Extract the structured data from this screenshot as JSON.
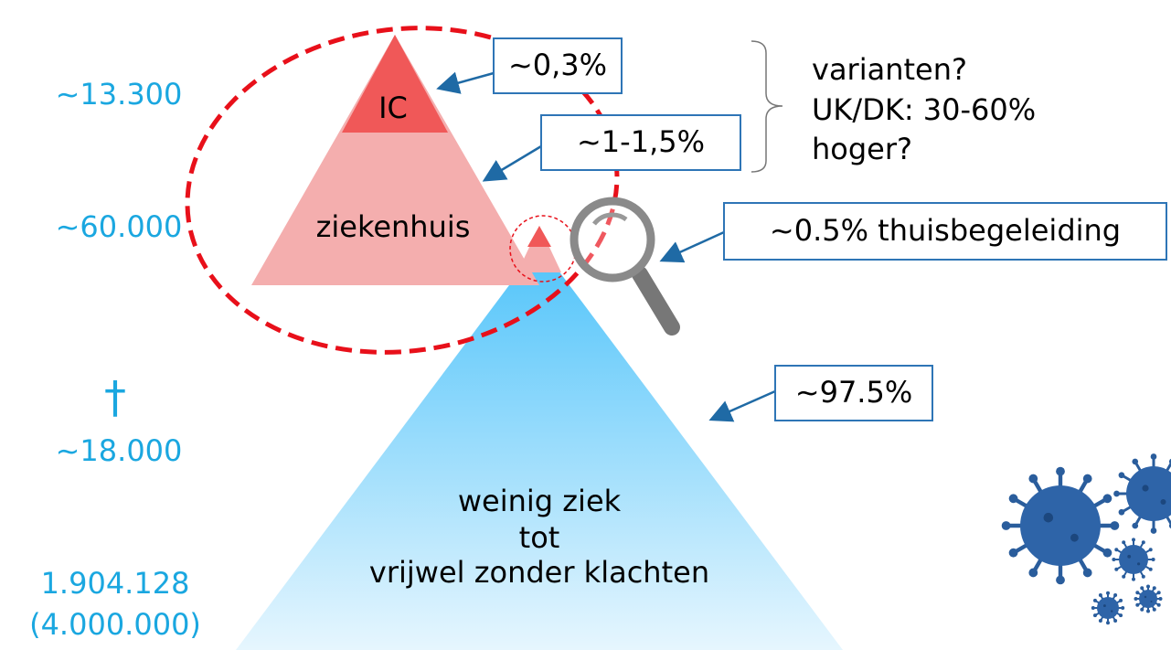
{
  "left_column": [
    "~13.300",
    "~60.000",
    "†",
    "~18.000",
    "1.904.128",
    "(4.000.000)"
  ],
  "pyramid": {
    "ic": "IC",
    "hospital": "ziekenhuis",
    "mild": [
      "weinig ziek",
      "tot",
      "vrijwel zonder klachten"
    ]
  },
  "callouts": [
    "~0,3%",
    "~1-1,5%",
    "~0.5% thuisbegeleiding",
    "~97.5%"
  ],
  "note": [
    "varianten?",
    "UK/DK: 30-60%",
    "hoger?"
  ]
}
